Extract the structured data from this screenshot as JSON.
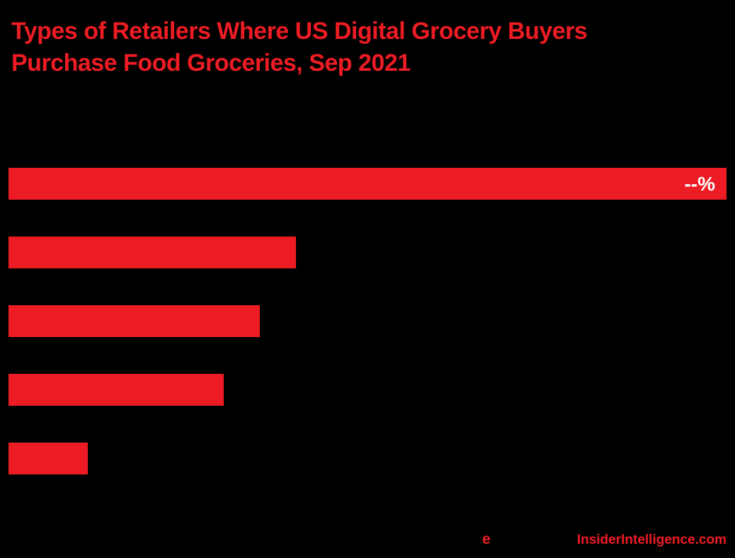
{
  "chart_data": {
    "type": "bar",
    "orientation": "horizontal",
    "title": "Types of Retailers Where US Digital Grocery Buyers Purchase Food Groceries, Sep 2021",
    "categories": [
      "",
      "",
      "",
      "",
      ""
    ],
    "values": [
      100,
      40,
      35,
      30,
      11
    ],
    "value_labels": [
      "--%",
      "",
      "",
      "",
      ""
    ],
    "xlim": [
      0,
      100
    ],
    "grid": false,
    "legend": "none",
    "bar_color": "#ed1c24",
    "background": "#000000"
  },
  "footer": {
    "logo_text": "e",
    "brand": "InsiderIntelligence.com"
  },
  "colors": {
    "accent": "#ed1c24",
    "bar_value_label": "#ffffff"
  }
}
